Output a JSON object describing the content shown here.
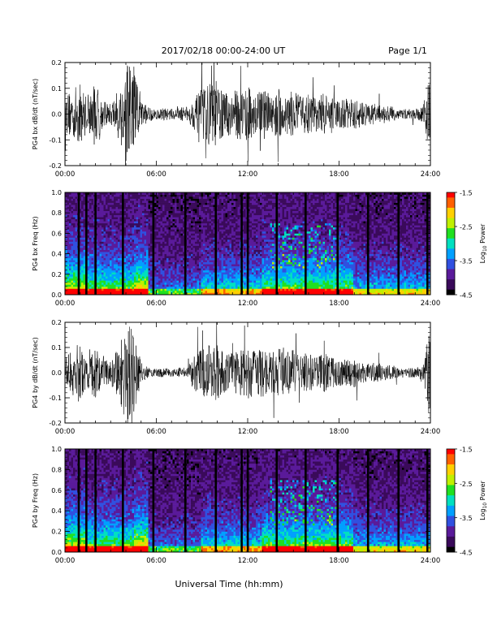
{
  "header": {
    "title": "2017/02/18  00:00-24:00 UT",
    "page": "Page 1/1"
  },
  "xaxis_label": "Universal Time (hh:mm)",
  "chart_data": [
    {
      "type": "line",
      "name": "bx-waveform",
      "ylabel": "PG4 bx dB/dt (nT/sec)",
      "xlim": [
        0,
        24
      ],
      "ylim": [
        -0.2,
        0.2
      ],
      "x_ticks": [
        "00:00",
        "06:00",
        "12:00",
        "18:00",
        "24:00"
      ],
      "y_ticks": [
        "-0.2",
        "-0.1",
        "0.0",
        "0.1",
        "0.2"
      ],
      "envelope": {
        "hours": [
          0,
          0.5,
          1,
          1.5,
          2,
          2.5,
          3,
          3.5,
          4,
          4.5,
          5,
          5.5,
          6,
          6.5,
          7,
          7.5,
          8,
          8.5,
          9,
          9.5,
          10,
          10.5,
          11,
          11.5,
          12,
          12.5,
          13,
          13.5,
          14,
          14.5,
          15,
          15.5,
          16,
          16.5,
          17,
          17.5,
          18,
          18.5,
          19,
          19.5,
          20,
          20.5,
          21,
          21.5,
          22,
          22.5,
          23,
          23.5,
          24
        ],
        "amplitude": [
          0.07,
          0.1,
          0.12,
          0.06,
          0.13,
          0.05,
          0.04,
          0.1,
          0.2,
          0.2,
          0.05,
          0.03,
          0.02,
          0.025,
          0.02,
          0.025,
          0.03,
          0.06,
          0.1,
          0.12,
          0.13,
          0.08,
          0.09,
          0.1,
          0.12,
          0.07,
          0.1,
          0.08,
          0.1,
          0.08,
          0.09,
          0.07,
          0.08,
          0.07,
          0.08,
          0.06,
          0.06,
          0.06,
          0.06,
          0.05,
          0.04,
          0.04,
          0.03,
          0.03,
          0.02,
          0.02,
          0.02,
          0.03,
          0.15
        ]
      }
    },
    {
      "type": "heatmap",
      "name": "bx-spectrogram",
      "ylabel": "PG4 bx Freq (Hz)",
      "xlim": [
        0,
        24
      ],
      "ylim": [
        0.0,
        1.0
      ],
      "x_ticks": [
        "00:00",
        "06:00",
        "12:00",
        "18:00",
        "24:00"
      ],
      "y_ticks": [
        "0.0",
        "0.2",
        "0.4",
        "0.6",
        "0.8",
        "1.0"
      ],
      "colorbar": {
        "label": "Log10 Power",
        "label_main": "Log",
        "label_sub": "10",
        "label_rest": " Power",
        "range": [
          -4.5,
          -1.5
        ],
        "ticks": [
          "-1.5",
          "-2.5",
          "-3.5",
          "-4.5"
        ]
      },
      "gap_hours": [
        0.9,
        1.4,
        2.0,
        3.8,
        5.8,
        7.9,
        9.9,
        11.6,
        12.0,
        13.9,
        15.8,
        17.9,
        19.9,
        21.9,
        23.8
      ]
    },
    {
      "type": "line",
      "name": "by-waveform",
      "ylabel": "PG4 by dB/dt (nT/sec)",
      "xlim": [
        0,
        24
      ],
      "ylim": [
        -0.2,
        0.2
      ],
      "x_ticks": [
        "00:00",
        "06:00",
        "12:00",
        "18:00",
        "24:00"
      ],
      "y_ticks": [
        "-0.2",
        "-0.1",
        "0.0",
        "0.1",
        "0.2"
      ],
      "envelope": {
        "hours": [
          0,
          0.5,
          1,
          1.5,
          2,
          2.5,
          3,
          3.5,
          4,
          4.5,
          5,
          5.5,
          6,
          6.5,
          7,
          7.5,
          8,
          8.5,
          9,
          9.5,
          10,
          10.5,
          11,
          11.5,
          12,
          12.5,
          13,
          13.5,
          14,
          14.5,
          15,
          15.5,
          16,
          16.5,
          17,
          17.5,
          18,
          18.5,
          19,
          19.5,
          20,
          20.5,
          21,
          21.5,
          22,
          22.5,
          23,
          23.5,
          24
        ],
        "amplitude": [
          0.06,
          0.1,
          0.12,
          0.06,
          0.11,
          0.05,
          0.05,
          0.1,
          0.2,
          0.18,
          0.04,
          0.02,
          0.015,
          0.02,
          0.015,
          0.02,
          0.02,
          0.07,
          0.1,
          0.11,
          0.12,
          0.08,
          0.08,
          0.09,
          0.11,
          0.08,
          0.1,
          0.08,
          0.1,
          0.08,
          0.09,
          0.07,
          0.08,
          0.06,
          0.08,
          0.06,
          0.06,
          0.05,
          0.06,
          0.04,
          0.04,
          0.04,
          0.03,
          0.03,
          0.02,
          0.02,
          0.02,
          0.03,
          0.2
        ]
      }
    },
    {
      "type": "heatmap",
      "name": "by-spectrogram",
      "ylabel": "PG4 by Freq (Hz)",
      "xlim": [
        0,
        24
      ],
      "ylim": [
        0.0,
        1.0
      ],
      "x_ticks": [
        "00:00",
        "06:00",
        "12:00",
        "18:00",
        "24:00"
      ],
      "y_ticks": [
        "0.0",
        "0.2",
        "0.4",
        "0.6",
        "0.8",
        "1.0"
      ],
      "colorbar": {
        "label": "Log10 Power",
        "label_main": "Log",
        "label_sub": "10",
        "label_rest": " Power",
        "range": [
          -4.5,
          -1.5
        ],
        "ticks": [
          "-1.5",
          "-2.5",
          "-3.5",
          "-4.5"
        ]
      },
      "gap_hours": [
        0.9,
        1.4,
        2.0,
        3.8,
        5.8,
        7.9,
        9.9,
        11.6,
        12.0,
        13.9,
        15.8,
        17.9,
        19.9,
        21.9,
        23.8
      ]
    }
  ],
  "colors": {
    "trace": "#000000",
    "background": "#ffffff",
    "colormap": [
      "#000000",
      "#3a0a5a",
      "#5a1a9a",
      "#3050e0",
      "#00a0ff",
      "#00e0c0",
      "#20e020",
      "#c0f000",
      "#ffd000",
      "#ff6000",
      "#ff0000"
    ]
  }
}
